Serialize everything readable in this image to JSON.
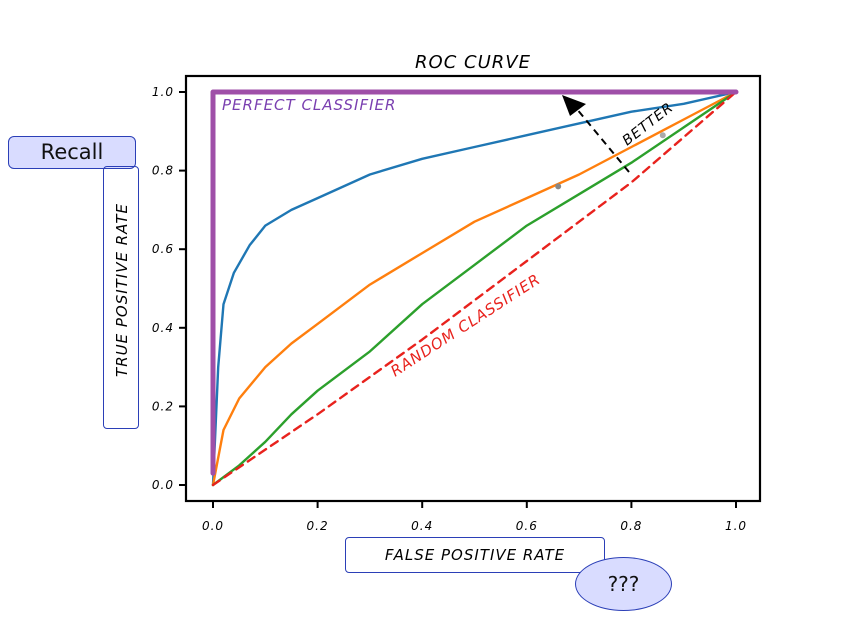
{
  "chart_data": {
    "type": "line",
    "title": "ROC CURVE",
    "xlabel": "FALSE POSITIVE RATE",
    "ylabel": "TRUE POSITIVE RATE",
    "xlim": [
      0,
      1
    ],
    "ylim": [
      0,
      1
    ],
    "xticks": [
      "0.0",
      "0.2",
      "0.4",
      "0.6",
      "0.8",
      "1.0"
    ],
    "yticks": [
      "0.0",
      "0.2",
      "0.4",
      "0.6",
      "0.8",
      "1.0"
    ],
    "grid": false,
    "series": [
      {
        "color": "#1f77b4",
        "x": [
          0,
          0.01,
          0.02,
          0.04,
          0.07,
          0.1,
          0.15,
          0.2,
          0.3,
          0.4,
          0.5,
          0.6,
          0.7,
          0.8,
          0.9,
          1.0
        ],
        "y": [
          0,
          0.3,
          0.46,
          0.54,
          0.61,
          0.66,
          0.7,
          0.73,
          0.79,
          0.83,
          0.86,
          0.89,
          0.92,
          0.95,
          0.97,
          1.0
        ]
      },
      {
        "color": "#ff7f0e",
        "x": [
          0,
          0.02,
          0.05,
          0.1,
          0.15,
          0.2,
          0.3,
          0.4,
          0.5,
          0.6,
          0.7,
          0.8,
          0.9,
          1.0
        ],
        "y": [
          0,
          0.14,
          0.22,
          0.3,
          0.36,
          0.41,
          0.51,
          0.59,
          0.67,
          0.73,
          0.79,
          0.86,
          0.93,
          1.0
        ],
        "markers": [
          {
            "x": 0.86,
            "y": 0.89,
            "color": "#aaaaaa"
          },
          {
            "x": 0.66,
            "y": 0.76,
            "color": "#888888"
          }
        ]
      },
      {
        "color": "#2ca02c",
        "x": [
          0,
          0.05,
          0.1,
          0.15,
          0.2,
          0.3,
          0.4,
          0.5,
          0.6,
          0.7,
          0.8,
          0.9,
          1.0
        ],
        "y": [
          0,
          0.05,
          0.11,
          0.18,
          0.24,
          0.34,
          0.46,
          0.56,
          0.66,
          0.74,
          0.82,
          0.91,
          1.0
        ]
      },
      {
        "color": "#e8221d",
        "style": "dashed",
        "x": [
          0,
          0.2,
          0.4,
          0.6,
          0.8,
          1.0
        ],
        "y": [
          0,
          0.18,
          0.37,
          0.57,
          0.77,
          1.0
        ]
      },
      {
        "color": "#9f4fa8",
        "x": [
          0,
          0,
          1.0
        ],
        "y": [
          0.03,
          1.0,
          1.0
        ]
      }
    ],
    "annotations": {
      "perfect": "PERFECT CLASSIFIER",
      "random": "RANDOM CLASSIFIER",
      "better": "BETTER"
    }
  },
  "callouts": {
    "recall": "Recall",
    "question": "???"
  }
}
